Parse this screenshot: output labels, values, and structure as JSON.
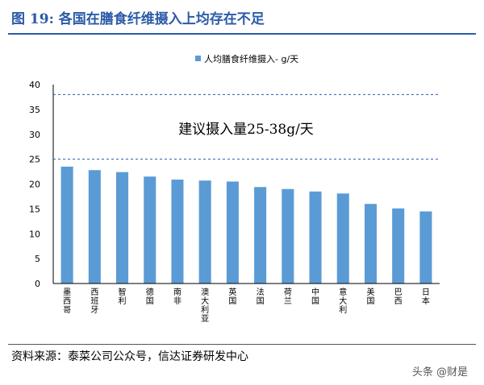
{
  "header": {
    "title": "图 19: 各国在膳食纤维摄入上均存在不足"
  },
  "footer": {
    "source": "资料来源：泰菜公司公众号，信达证券研发中心",
    "watermark": "头条 @财是"
  },
  "colors": {
    "title": "#2b5ba8",
    "bar": "#5b9bd5",
    "reference_line": "#2b5ba8"
  },
  "chart_data": {
    "type": "bar",
    "title": "",
    "xlabel": "",
    "ylabel": "",
    "categories": [
      "墨西哥",
      "西班牙",
      "智利",
      "德国",
      "南非",
      "澳大利亚",
      "英国",
      "法国",
      "荷兰",
      "中国",
      "意大利",
      "美国",
      "巴西",
      "日本"
    ],
    "series": [
      {
        "name": "人均膳食纤维摄入- g/天",
        "values": [
          23.5,
          22.8,
          22.4,
          21.5,
          20.9,
          20.7,
          20.5,
          19.4,
          19.0,
          18.5,
          18.1,
          16.0,
          15.1,
          14.5
        ]
      }
    ],
    "ylim": [
      0,
      40
    ],
    "yticks": [
      0,
      5,
      10,
      15,
      20,
      25,
      30,
      35,
      40
    ],
    "grid": false,
    "legend": "top",
    "reference_lines": [
      25,
      38
    ],
    "annotation": "建议摄入量25-38g/天"
  }
}
